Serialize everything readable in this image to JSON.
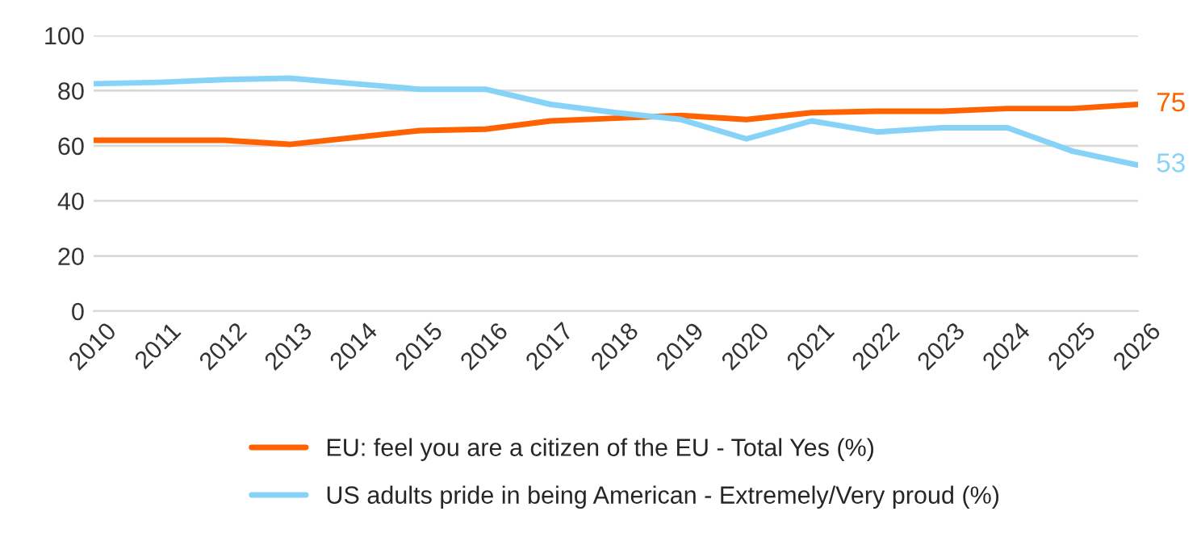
{
  "chart_data": {
    "type": "line",
    "categories": [
      "2010",
      "2011",
      "2012",
      "2013",
      "2014",
      "2015",
      "2016",
      "2017",
      "2018",
      "2019",
      "2020",
      "2021",
      "2022",
      "2023",
      "2024",
      "2025",
      "2026"
    ],
    "series": [
      {
        "name": "EU: feel you are a citizen of the EU - Total Yes (%)",
        "color": "#ff6200",
        "values": [
          62,
          62,
          62,
          60.5,
          63,
          65.5,
          66,
          69,
          70,
          71,
          69.5,
          72,
          72.5,
          72.5,
          73.5,
          73.5,
          75
        ]
      },
      {
        "name": "US adults pride in being American - Extremely/Very proud (%)",
        "color": "#87d3f8",
        "values": [
          82.5,
          83,
          84,
          84.5,
          82.5,
          80.5,
          80.5,
          75,
          72,
          69.5,
          62.5,
          69,
          65,
          66.5,
          66.5,
          58,
          53
        ]
      }
    ],
    "annotations": [
      {
        "text": "75",
        "x": "2026",
        "y": 75
      },
      {
        "text": "53",
        "x": "2026",
        "y": 53
      }
    ],
    "ylim": [
      0,
      100
    ],
    "yticks": [
      0,
      20,
      40,
      60,
      80,
      100
    ],
    "grid": "y",
    "legend": "bottom",
    "marker": "none",
    "line_style": "solid"
  }
}
